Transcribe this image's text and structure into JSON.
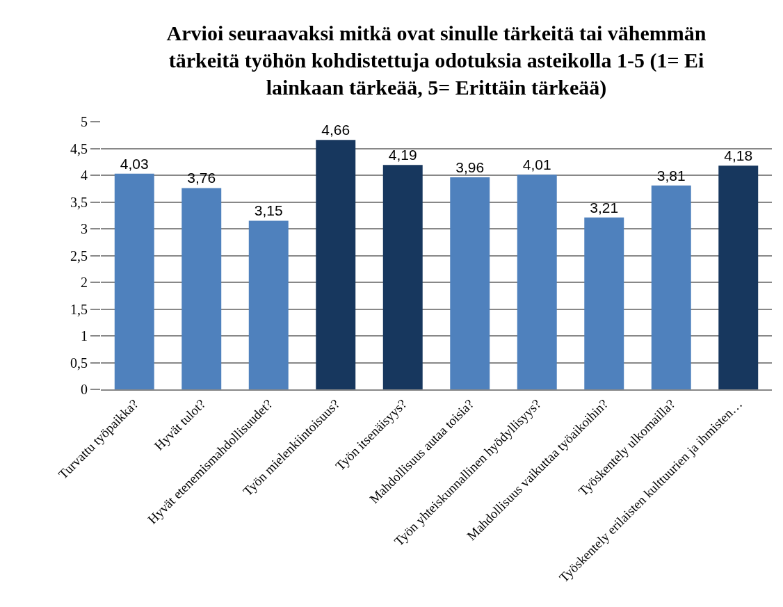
{
  "chart_data": {
    "type": "bar",
    "title": "Arvioi seuraavaksi mitkä ovat sinulle tärkeitä tai vähemmän tärkeitä työhön kohdistettuja odotuksia asteikolla 1-5 (1= Ei lainkaan tärkeää, 5= Erittäin tärkeää)",
    "categories": [
      "Turvattu työpaikka?",
      "Hyvät tulot?",
      "Hyvät etenemismahdollisuudet?",
      "Työn mielenkiintoisuus?",
      "Työn itsenäisyys?",
      "Mahdollisuus autaa toisia?",
      "Työn yhteiskunnallinen hyödyllisyys?",
      "Mahdollisuus vaikuttaa työaikoihin?",
      "Työskentely ulkomailla?",
      "Työskentely erilaisten kulttuurien ja ihmisten…"
    ],
    "values": [
      4.03,
      3.76,
      3.15,
      4.66,
      4.19,
      3.96,
      4.01,
      3.21,
      3.81,
      4.18
    ],
    "colors": [
      "#4f81bd",
      "#4f81bd",
      "#4f81bd",
      "#17375e",
      "#17375e",
      "#4f81bd",
      "#4f81bd",
      "#4f81bd",
      "#4f81bd",
      "#17375e"
    ],
    "value_labels": [
      "4,03",
      "3,76",
      "3,15",
      "4,66",
      "4,19",
      "3,96",
      "4,01",
      "3,21",
      "3,81",
      "4,18"
    ],
    "ylim": [
      0,
      5
    ],
    "yticks": [
      0,
      {
        "value": 0.5,
        "label": "0,5"
      },
      1,
      {
        "value": 1.5,
        "label": "1,5"
      },
      2,
      {
        "value": 2.5,
        "label": "2,5"
      },
      3,
      {
        "value": 3.5,
        "label": "3,5"
      },
      4,
      {
        "value": 4.5,
        "label": "4,5"
      },
      5
    ],
    "grid": "y"
  }
}
